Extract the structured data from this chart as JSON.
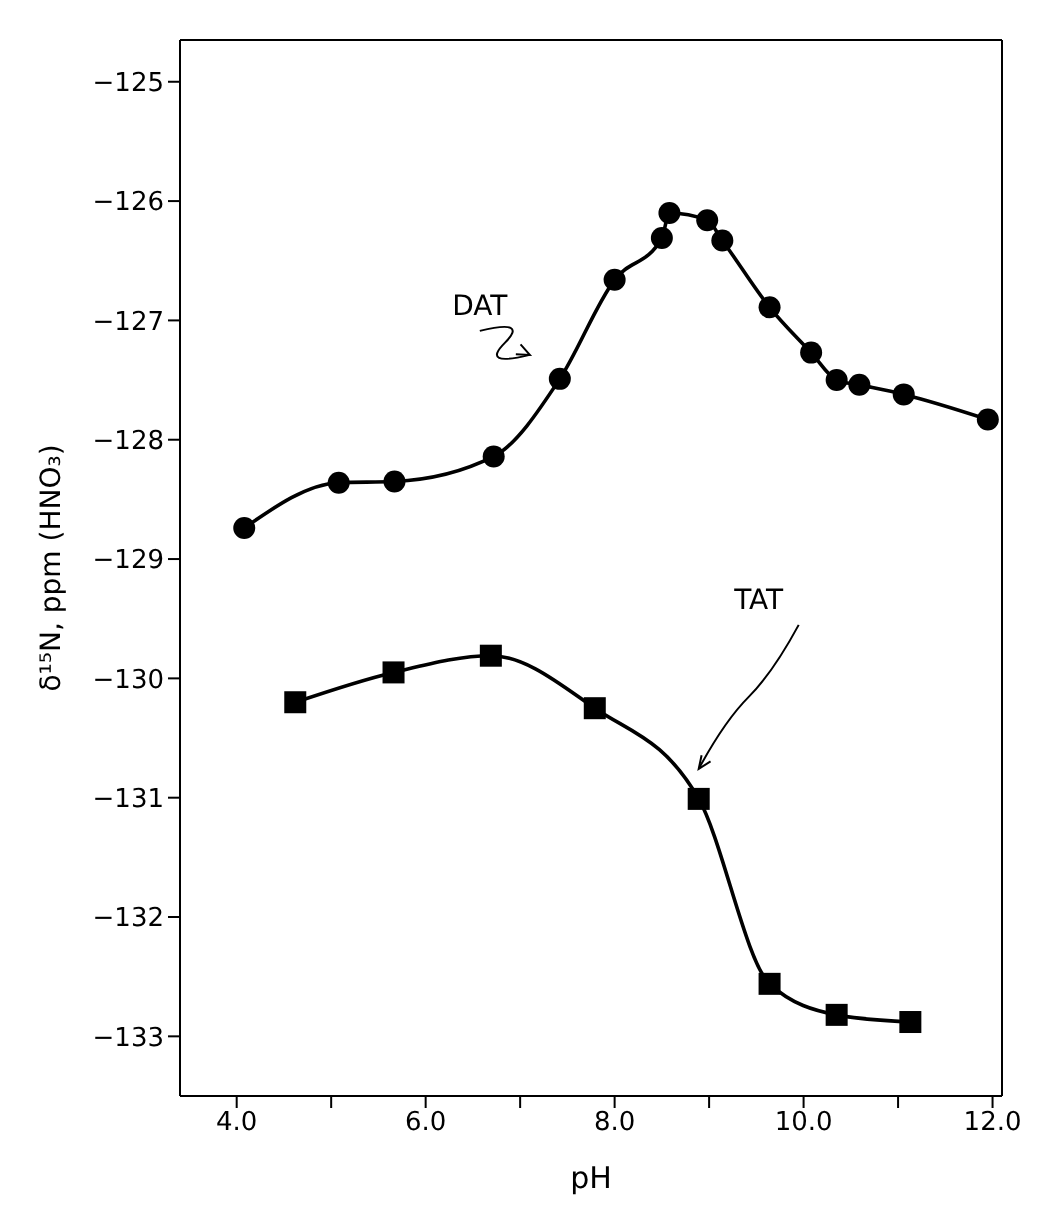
{
  "chart_data": {
    "type": "line",
    "xlabel": "pH",
    "ylabel": "δ¹⁵N, ppm (HNO₃)",
    "xlim": [
      3.4,
      12.1
    ],
    "xticks": [
      {
        "value": 4,
        "label": "4.0"
      },
      {
        "value": 5,
        "label": null
      },
      {
        "value": 6,
        "label": "6.0"
      },
      {
        "value": 7,
        "label": null
      },
      {
        "value": 8,
        "label": "8.0"
      },
      {
        "value": 9,
        "label": null
      },
      {
        "value": 10,
        "label": "10.0"
      },
      {
        "value": 11,
        "label": null
      },
      {
        "value": 12,
        "label": "12.0"
      }
    ],
    "ylim": [
      -133.5,
      -124.65
    ],
    "yticks": [
      -133,
      -132,
      -131,
      -130,
      -129,
      -128,
      -127,
      -126,
      -125
    ],
    "line_style": "solid",
    "series": [
      {
        "name": "DAT",
        "color": "#000000",
        "marker": "circle",
        "x": [
          4.08,
          5.08,
          5.67,
          6.72,
          7.42,
          8.0,
          8.5,
          8.58,
          8.98,
          9.14,
          9.64,
          10.08,
          10.35,
          10.59,
          11.06,
          11.95
        ],
        "values": [
          -128.74,
          -128.36,
          -128.35,
          -128.14,
          -127.49,
          -126.66,
          -126.31,
          -126.1,
          -126.16,
          -126.33,
          -126.89,
          -127.27,
          -127.5,
          -127.54,
          -127.62,
          -127.83
        ]
      },
      {
        "name": "TAT",
        "color": "#000000",
        "marker": "square",
        "x": [
          4.62,
          5.66,
          6.69,
          7.79,
          8.89,
          9.64,
          10.35,
          11.13
        ],
        "values": [
          -130.2,
          -129.95,
          -129.81,
          -130.25,
          -131.01,
          -132.56,
          -132.82,
          -132.88
        ]
      }
    ]
  }
}
